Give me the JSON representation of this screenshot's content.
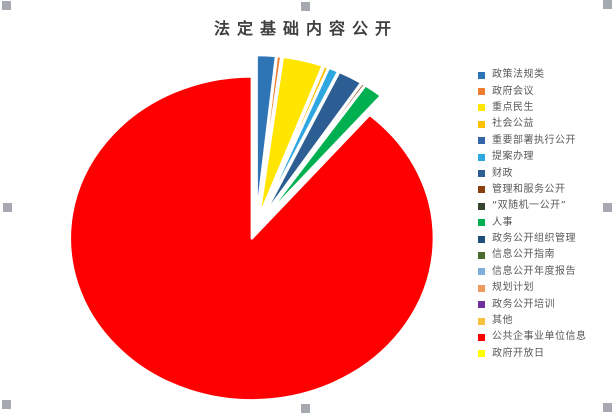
{
  "chart_data": {
    "type": "pie",
    "title": "法定基础内容公开",
    "legend_position": "right",
    "exploded": true,
    "start_angle_deg": 0,
    "direction": "clockwise",
    "values_note": "percent share estimated from slice angles",
    "categories": [
      "政策法规类",
      "政府会议",
      "重点民生",
      "社会公益",
      "重要部署执行公开",
      "提案办理",
      "财政",
      "管理和服务公开",
      "“双随机一公开”",
      "人事",
      "政务公开组织管理",
      "信息公开指南",
      "信息公开年度报告",
      "规划计划",
      "政务公开培训",
      "其他",
      "公共企事业单位信息",
      "政府开放日"
    ],
    "values": [
      1.7,
      0.4,
      3.6,
      0.4,
      0,
      0.9,
      2.2,
      0.3,
      0,
      1.7,
      0,
      0,
      0,
      0,
      0,
      0,
      88.8,
      0
    ],
    "colors": [
      "#2E75B6",
      "#ED7D31",
      "#FFE500",
      "#FFC000",
      "#3465A8",
      "#2EA7E0",
      "#2C5E93",
      "#8B3D0E",
      "#36452F",
      "#00B050",
      "#1F4E79",
      "#4C6B2F",
      "#7FAEDC",
      "#EF9A5D",
      "#7030A0",
      "#F8C33C",
      "#FE0000",
      "#FFFF00"
    ],
    "title_color": "#404040",
    "legend_text_color": "#595959"
  },
  "selection": {
    "handle_color": "#A7A9B1",
    "handle_count": 8
  }
}
